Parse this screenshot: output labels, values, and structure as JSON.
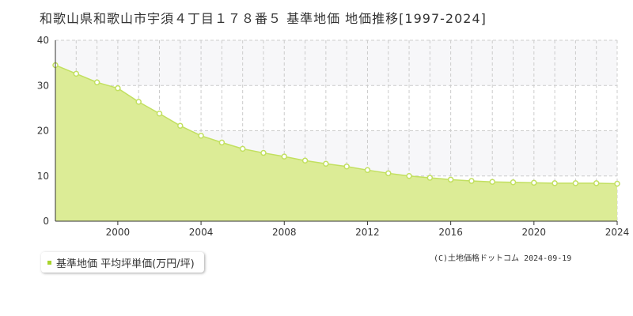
{
  "title": "和歌山県和歌山市宇須４丁目１７８番５ 基準地価 地価推移[1997-2024]",
  "copyright": "(C)土地価格ドットコム 2024-09-19",
  "colors": {
    "area_fill": "#dcec96",
    "line": "#c2e060",
    "marker": "#a8d42c",
    "band": "#f7f7f9"
  },
  "chart_data": {
    "type": "area",
    "x": [
      1997,
      1998,
      1999,
      2000,
      2001,
      2002,
      2003,
      2004,
      2005,
      2006,
      2007,
      2008,
      2009,
      2010,
      2011,
      2012,
      2013,
      2014,
      2015,
      2016,
      2017,
      2018,
      2019,
      2020,
      2021,
      2022,
      2023,
      2024
    ],
    "series": [
      {
        "name": "基準地価 平均坪単価(万円/坪)",
        "values": [
          34.5,
          32.6,
          30.7,
          29.4,
          26.4,
          23.8,
          21.1,
          18.9,
          17.4,
          16.0,
          15.1,
          14.3,
          13.4,
          12.7,
          12.1,
          11.3,
          10.6,
          10.0,
          9.6,
          9.2,
          8.9,
          8.7,
          8.6,
          8.5,
          8.4,
          8.4,
          8.4,
          8.3
        ]
      }
    ],
    "xlim": [
      1997,
      2024
    ],
    "ylim": [
      0,
      40
    ],
    "x_ticks": [
      2000,
      2004,
      2008,
      2012,
      2016,
      2020,
      2024
    ],
    "y_ticks": [
      0,
      10,
      20,
      30,
      40
    ],
    "grid": true,
    "legend": "bottom-left"
  }
}
